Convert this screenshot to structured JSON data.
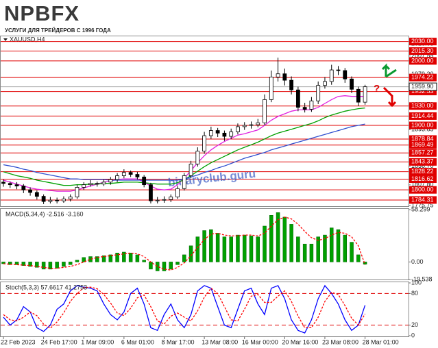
{
  "header": {
    "logo": "NPBFX",
    "tagline": "УСЛУГИ ДЛЯ ТРЕЙДЕРОВ С 1996 ГОДА"
  },
  "chart_data": [
    {
      "type": "candlestick",
      "symbol": "XAUUSD,H4",
      "categories": [
        "22 Feb 2023",
        null,
        null,
        null,
        null,
        null,
        "24 Feb 17:00",
        null,
        null,
        null,
        null,
        null,
        "1 Mar 09:00",
        null,
        null,
        null,
        null,
        null,
        "6 Mar 01:00",
        null,
        null,
        null,
        null,
        null,
        "8 Mar 17:00",
        null,
        null,
        null,
        null,
        null,
        "13 Mar 08:00",
        null,
        null,
        null,
        null,
        null,
        "16 Mar 00:00",
        null,
        null,
        null,
        null,
        null,
        "20 Mar 16:00",
        null,
        null,
        null,
        null,
        null,
        "23 Mar 08:00",
        null,
        null,
        null,
        null,
        null,
        "28 Mar 01:00"
      ],
      "open": [
        1812,
        1810,
        1808,
        1806,
        1800,
        1796,
        1790,
        1782,
        1784,
        1783,
        1786,
        1789,
        1804,
        1808,
        1810,
        1809,
        1812,
        1816,
        1822,
        1827,
        1824,
        1820,
        1808,
        1783,
        1784,
        1785,
        1789,
        1802,
        1822,
        1840,
        1860,
        1884,
        1892,
        1888,
        1883,
        1890,
        1898,
        1900,
        1901,
        1904,
        1940,
        1975,
        1980,
        1970,
        1955,
        1928,
        1925,
        1938,
        1962,
        1968,
        1986,
        1985,
        1972,
        1956,
        1936
      ],
      "high": [
        1816,
        1813,
        1812,
        1809,
        1804,
        1799,
        1793,
        1789,
        1788,
        1790,
        1793,
        1808,
        1812,
        1815,
        1813,
        1816,
        1820,
        1826,
        1832,
        1830,
        1828,
        1823,
        1811,
        1789,
        1790,
        1793,
        1806,
        1826,
        1845,
        1866,
        1890,
        1898,
        1896,
        1892,
        1895,
        1903,
        1905,
        1906,
        1910,
        1948,
        1985,
        2005,
        1988,
        1976,
        1960,
        1935,
        1944,
        1968,
        1975,
        1994,
        1992,
        1989,
        1976,
        1960,
        1963
      ],
      "low": [
        1805,
        1803,
        1801,
        1795,
        1791,
        1785,
        1778,
        1779,
        1779,
        1780,
        1782,
        1786,
        1800,
        1805,
        1805,
        1806,
        1808,
        1812,
        1818,
        1820,
        1816,
        1804,
        1779,
        1779,
        1780,
        1781,
        1786,
        1799,
        1818,
        1836,
        1856,
        1879,
        1882,
        1876,
        1879,
        1886,
        1893,
        1895,
        1897,
        1900,
        1936,
        1968,
        1962,
        1948,
        1922,
        1920,
        1921,
        1933,
        1957,
        1963,
        1978,
        1966,
        1950,
        1930,
        1932
      ],
      "close": [
        1810,
        1808,
        1806,
        1800,
        1796,
        1790,
        1782,
        1784,
        1783,
        1786,
        1789,
        1804,
        1808,
        1810,
        1809,
        1812,
        1816,
        1822,
        1827,
        1824,
        1820,
        1808,
        1783,
        1784,
        1785,
        1789,
        1802,
        1822,
        1840,
        1860,
        1884,
        1892,
        1888,
        1883,
        1890,
        1898,
        1900,
        1901,
        1904,
        1940,
        1975,
        1980,
        1970,
        1955,
        1928,
        1925,
        1938,
        1962,
        1968,
        1986,
        1985,
        1972,
        1956,
        1936,
        1959.9
      ],
      "up_color": "#ffffff",
      "down_color": "#000000",
      "overlays": [
        {
          "color": "#e020e0",
          "values": [
            1815,
            1812,
            1809,
            1806,
            1803,
            1801,
            1800,
            1799,
            1798,
            1798,
            1798,
            1800,
            1803,
            1806,
            1809,
            1812,
            1814,
            1816,
            1817,
            1817,
            1817,
            1812,
            1806,
            1801,
            1800,
            1801,
            1808,
            1818,
            1830,
            1842,
            1853,
            1862,
            1869,
            1875,
            1880,
            1885,
            1887,
            1890,
            1893,
            1900,
            1908,
            1914,
            1918,
            1922,
            1924,
            1924,
            1924,
            1928,
            1934,
            1940,
            1945,
            1946,
            1945,
            1945,
            1945
          ]
        },
        {
          "color": "#00a000",
          "values": [
            1828,
            1825,
            1822,
            1820,
            1818,
            1815,
            1813,
            1811,
            1809,
            1807,
            1807,
            1808,
            1808,
            1809,
            1809,
            1810,
            1810,
            1811,
            1812,
            1812,
            1812,
            1811,
            1810,
            1809,
            1809,
            1809,
            1811,
            1816,
            1822,
            1829,
            1836,
            1842,
            1847,
            1852,
            1857,
            1862,
            1866,
            1870,
            1874,
            1879,
            1884,
            1888,
            1891,
            1894,
            1897,
            1900,
            1903,
            1907,
            1912,
            1916,
            1919,
            1922,
            1924,
            1926,
            1927
          ]
        },
        {
          "color": "#3050d0",
          "values": [
            1839,
            1837,
            1835,
            1832,
            1830,
            1827,
            1825,
            1823,
            1821,
            1819,
            1817,
            1817,
            1816,
            1816,
            1816,
            1816,
            1815,
            1815,
            1815,
            1815,
            1815,
            1815,
            1815,
            1815,
            1815,
            1815,
            1815,
            1817,
            1820,
            1823,
            1827,
            1830,
            1834,
            1837,
            1841,
            1845,
            1849,
            1852,
            1855,
            1858,
            1862,
            1865,
            1868,
            1871,
            1874,
            1877,
            1880,
            1883,
            1886,
            1889,
            1892,
            1895,
            1898,
            1900,
            1902
          ]
        }
      ],
      "levels": [
        {
          "value": 2030,
          "label": "2030.00"
        },
        {
          "value": 2015.3,
          "label": "2015.30"
        },
        {
          "value": 2000,
          "label": "2000.00"
        },
        1974.22,
        1952.53,
        {
          "value": 1930,
          "label": "1930.00"
        },
        1914.44,
        {
          "value": 1900,
          "label": "1900.00"
        },
        1878.84,
        1869.49,
        1857.27,
        1843.37,
        1828.22,
        1816.62,
        {
          "value": 1800,
          "label": "1800.00"
        },
        1784.31
      ],
      "level_color": "#e00000",
      "ylim": [
        1775.75,
        2036
      ],
      "yticks": [
        2026.05,
        2007.55,
        {
          "value": 1979.2,
          "label": "1979.20"
        },
        {
          "value": 1931.7,
          "label": "1931.70"
        },
        1893.65,
        {
          "value": 1836.7,
          "label": "1836.70"
        },
        {
          "value": 1807.8,
          "label": "1807.80"
        },
        1775.75
      ],
      "last_price": {
        "value": 1959.9,
        "label": "1959.90"
      },
      "watermark": "binaryclub.guru",
      "annotation": "?"
    },
    {
      "type": "bar",
      "label": "MACD(5,34,4) -2.516 -3.160",
      "color": "#00a000",
      "values": [
        -2,
        -3,
        -3,
        -4,
        -5,
        -6,
        -8,
        -8,
        -7,
        -5,
        -3,
        2,
        5,
        6,
        6,
        7,
        8,
        10,
        11,
        10,
        8,
        2,
        -8,
        -10,
        -10,
        -8,
        -3,
        8,
        18,
        28,
        35,
        36,
        32,
        28,
        28,
        30,
        30,
        29,
        28,
        40,
        52,
        55,
        50,
        42,
        28,
        20,
        20,
        28,
        30,
        38,
        36,
        30,
        22,
        8,
        -2.516
      ],
      "signal": {
        "color": "#ff0000",
        "values": [
          -2,
          -2.5,
          -3,
          -3.5,
          -4,
          -5,
          -6,
          -7,
          -7,
          -6,
          -5,
          -3,
          0,
          3,
          5,
          6,
          7,
          8,
          9,
          10,
          9,
          6,
          0,
          -5,
          -8,
          -9,
          -6,
          -1,
          7,
          16,
          25,
          31,
          32,
          30,
          29,
          29,
          30,
          30,
          29,
          32,
          40,
          47,
          50,
          48,
          42,
          34,
          27,
          24,
          26,
          30,
          33,
          32,
          28,
          18,
          -3.16
        ]
      },
      "ylim": [
        -19.538,
        58.299
      ],
      "yticks": [
        58.299,
        {
          "value": 0,
          "label": "0.00"
        },
        -19.538
      ]
    },
    {
      "type": "line",
      "label": "Stoch(5,3,3) 57.6617 41.2753",
      "series": [
        {
          "color": "#0000ff",
          "values": [
            35,
            20,
            30,
            55,
            45,
            15,
            8,
            20,
            50,
            60,
            85,
            95,
            92,
            90,
            85,
            60,
            40,
            30,
            45,
            80,
            90,
            60,
            15,
            10,
            40,
            60,
            30,
            15,
            40,
            85,
            95,
            90,
            55,
            20,
            15,
            50,
            85,
            90,
            60,
            40,
            90,
            95,
            70,
            30,
            10,
            5,
            30,
            70,
            95,
            80,
            60,
            30,
            10,
            20,
            57.6617
          ]
        },
        {
          "color": "#ff0000",
          "values": [
            40,
            30,
            28,
            35,
            45,
            38,
            22,
            14,
            26,
            43,
            65,
            80,
            91,
            92,
            89,
            78,
            62,
            43,
            38,
            52,
            72,
            77,
            55,
            28,
            22,
            37,
            43,
            35,
            28,
            47,
            73,
            90,
            80,
            55,
            30,
            28,
            50,
            75,
            78,
            63,
            63,
            75,
            85,
            65,
            37,
            15,
            15,
            35,
            65,
            82,
            78,
            57,
            33,
            20,
            41.2753
          ]
        }
      ],
      "levels": [
        80,
        20
      ],
      "level_color": "#e00000",
      "ylim": [
        0,
        100
      ],
      "yticks": [
        100,
        80,
        20,
        0
      ]
    }
  ]
}
